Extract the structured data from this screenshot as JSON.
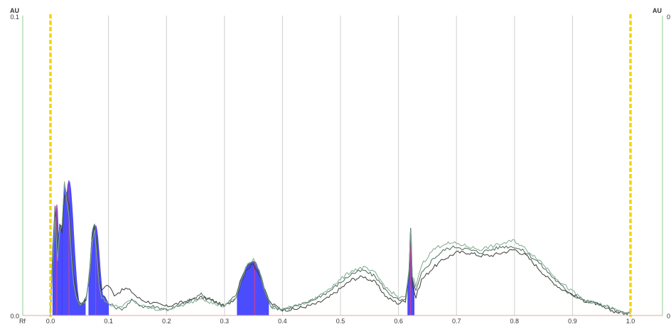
{
  "chart_data": {
    "type": "line",
    "axes": {
      "y_left_unit": "AU",
      "y_right_unit": "AU",
      "y_left_ticks": [
        "0.1",
        "0.0"
      ],
      "y_right_ticks": [
        "0",
        "0"
      ],
      "x_axis_label": "Rf",
      "x_ticks": [
        "0.0",
        "0.1",
        "0.2",
        "0.3",
        "0.4",
        "0.5",
        "0.6",
        "0.7",
        "0.8",
        "0.9",
        "1.0"
      ],
      "xlim": [
        0.0,
        1.0
      ],
      "ylim": [
        0.0,
        0.1
      ],
      "grid": "vertical"
    },
    "markers": {
      "front_lines_rf": [
        0.0,
        1.0
      ],
      "front_line_color": "#f2d500"
    },
    "colors": {
      "peak_fill": "#1a1aff",
      "peak_line": "#e0407a",
      "traces": [
        "#3a3a3a",
        "#4c6b58",
        "#7fa890"
      ],
      "baseline": "#f0a0a0",
      "left_axis": "#8fcf8f",
      "right_axis": "#8fcf8f",
      "gridline": "#d0d0d0"
    },
    "series": [
      {
        "x": [
          0.0,
          0.004,
          0.008,
          0.012,
          0.016,
          0.02,
          0.024,
          0.028,
          0.032,
          0.036,
          0.04,
          0.044,
          0.048,
          0.055,
          0.062,
          0.068,
          0.072,
          0.076,
          0.08,
          0.084,
          0.088,
          0.094,
          0.1,
          0.11,
          0.12,
          0.13,
          0.14,
          0.15,
          0.16,
          0.18,
          0.2,
          0.22,
          0.24,
          0.26,
          0.28,
          0.3,
          0.32,
          0.33,
          0.34,
          0.35,
          0.36,
          0.37,
          0.38,
          0.4,
          0.42,
          0.44,
          0.46,
          0.48,
          0.5,
          0.52,
          0.54,
          0.56,
          0.58,
          0.6,
          0.612,
          0.618,
          0.621,
          0.624,
          0.63,
          0.64,
          0.66,
          0.68,
          0.7,
          0.72,
          0.74,
          0.76,
          0.78,
          0.8,
          0.82,
          0.84,
          0.86,
          0.88,
          0.9,
          0.92,
          0.94,
          0.96,
          0.98,
          1.0
        ],
        "y": [
          0.0004,
          0.022,
          0.037,
          0.02,
          0.03,
          0.028,
          0.04,
          0.04,
          0.037,
          0.024,
          0.014,
          0.008,
          0.005,
          0.004,
          0.006,
          0.014,
          0.026,
          0.03,
          0.024,
          0.012,
          0.008,
          0.01,
          0.01,
          0.007,
          0.008,
          0.009,
          0.008,
          0.006,
          0.005,
          0.004,
          0.003,
          0.004,
          0.005,
          0.006,
          0.005,
          0.003,
          0.006,
          0.012,
          0.016,
          0.017,
          0.014,
          0.008,
          0.004,
          0.002,
          0.002,
          0.003,
          0.004,
          0.006,
          0.009,
          0.012,
          0.013,
          0.011,
          0.006,
          0.004,
          0.005,
          0.014,
          0.028,
          0.01,
          0.006,
          0.012,
          0.016,
          0.019,
          0.021,
          0.021,
          0.02,
          0.02,
          0.021,
          0.022,
          0.02,
          0.016,
          0.012,
          0.009,
          0.007,
          0.005,
          0.004,
          0.002,
          0.001,
          0.0005
        ]
      },
      {
        "x": [
          0.0,
          0.004,
          0.008,
          0.012,
          0.016,
          0.02,
          0.024,
          0.028,
          0.032,
          0.036,
          0.04,
          0.044,
          0.048,
          0.055,
          0.062,
          0.068,
          0.072,
          0.076,
          0.08,
          0.084,
          0.088,
          0.094,
          0.1,
          0.11,
          0.12,
          0.13,
          0.14,
          0.15,
          0.16,
          0.18,
          0.2,
          0.22,
          0.24,
          0.26,
          0.28,
          0.3,
          0.32,
          0.33,
          0.34,
          0.35,
          0.36,
          0.37,
          0.38,
          0.4,
          0.42,
          0.44,
          0.46,
          0.48,
          0.5,
          0.52,
          0.54,
          0.56,
          0.58,
          0.6,
          0.612,
          0.618,
          0.621,
          0.624,
          0.63,
          0.64,
          0.66,
          0.68,
          0.7,
          0.72,
          0.74,
          0.76,
          0.78,
          0.8,
          0.82,
          0.84,
          0.86,
          0.88,
          0.9,
          0.92,
          0.94,
          0.96,
          0.98,
          1.0
        ],
        "y": [
          0.0004,
          0.02,
          0.035,
          0.02,
          0.03,
          0.03,
          0.044,
          0.04,
          0.035,
          0.022,
          0.012,
          0.007,
          0.004,
          0.004,
          0.006,
          0.016,
          0.028,
          0.031,
          0.022,
          0.01,
          0.007,
          0.006,
          0.004,
          0.003,
          0.002,
          0.003,
          0.005,
          0.004,
          0.003,
          0.003,
          0.002,
          0.003,
          0.005,
          0.007,
          0.005,
          0.003,
          0.007,
          0.013,
          0.017,
          0.018,
          0.015,
          0.008,
          0.003,
          0.002,
          0.003,
          0.004,
          0.006,
          0.008,
          0.011,
          0.014,
          0.015,
          0.013,
          0.008,
          0.005,
          0.005,
          0.014,
          0.029,
          0.012,
          0.008,
          0.014,
          0.019,
          0.022,
          0.023,
          0.022,
          0.021,
          0.022,
          0.023,
          0.023,
          0.021,
          0.018,
          0.014,
          0.01,
          0.007,
          0.005,
          0.004,
          0.003,
          0.001,
          0.0005
        ]
      },
      {
        "x": [
          0.0,
          0.004,
          0.008,
          0.012,
          0.016,
          0.02,
          0.024,
          0.028,
          0.032,
          0.036,
          0.04,
          0.044,
          0.048,
          0.055,
          0.062,
          0.068,
          0.072,
          0.076,
          0.08,
          0.084,
          0.088,
          0.094,
          0.1,
          0.11,
          0.12,
          0.13,
          0.14,
          0.15,
          0.16,
          0.18,
          0.2,
          0.22,
          0.24,
          0.26,
          0.28,
          0.3,
          0.32,
          0.33,
          0.34,
          0.35,
          0.36,
          0.37,
          0.38,
          0.4,
          0.42,
          0.44,
          0.46,
          0.48,
          0.5,
          0.52,
          0.54,
          0.56,
          0.58,
          0.6,
          0.612,
          0.618,
          0.621,
          0.624,
          0.63,
          0.64,
          0.66,
          0.68,
          0.7,
          0.72,
          0.74,
          0.76,
          0.78,
          0.8,
          0.82,
          0.84,
          0.86,
          0.88,
          0.9,
          0.92,
          0.94,
          0.96,
          0.98,
          1.0
        ],
        "y": [
          0.0004,
          0.018,
          0.033,
          0.018,
          0.028,
          0.031,
          0.045,
          0.038,
          0.033,
          0.02,
          0.011,
          0.006,
          0.004,
          0.004,
          0.005,
          0.015,
          0.025,
          0.029,
          0.02,
          0.01,
          0.006,
          0.005,
          0.004,
          0.003,
          0.003,
          0.004,
          0.005,
          0.004,
          0.003,
          0.002,
          0.002,
          0.003,
          0.004,
          0.006,
          0.004,
          0.003,
          0.006,
          0.012,
          0.017,
          0.019,
          0.015,
          0.008,
          0.003,
          0.002,
          0.003,
          0.004,
          0.006,
          0.009,
          0.012,
          0.015,
          0.016,
          0.014,
          0.009,
          0.006,
          0.006,
          0.015,
          0.028,
          0.013,
          0.01,
          0.017,
          0.022,
          0.024,
          0.024,
          0.023,
          0.022,
          0.023,
          0.024,
          0.025,
          0.022,
          0.019,
          0.015,
          0.011,
          0.008,
          0.005,
          0.004,
          0.003,
          0.0015,
          0.0005
        ]
      }
    ],
    "peaks": [
      {
        "rf": 0.011,
        "height": 0.037,
        "left": 0.004,
        "right": 0.02
      },
      {
        "rf": 0.032,
        "height": 0.045,
        "left": 0.02,
        "right": 0.06
      },
      {
        "rf": 0.078,
        "height": 0.03,
        "left": 0.066,
        "right": 0.1
      },
      {
        "rf": 0.352,
        "height": 0.018,
        "left": 0.322,
        "right": 0.376
      },
      {
        "rf": 0.621,
        "height": 0.029,
        "left": 0.616,
        "right": 0.627
      }
    ]
  }
}
